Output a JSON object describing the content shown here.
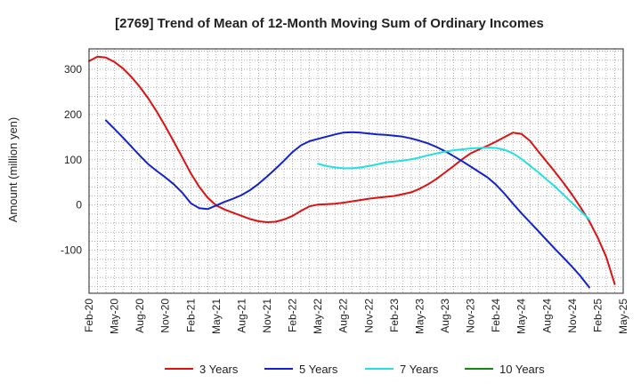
{
  "chart_data": {
    "type": "line",
    "title": "[2769]  Trend of Mean of 12-Month Moving Sum of Ordinary Incomes",
    "xlabel": "",
    "ylabel": "Amount (million yen)",
    "ylim": [
      -195,
      345
    ],
    "yticks": [
      300,
      200,
      100,
      0,
      -100
    ],
    "ytick_labels": [
      "300",
      "200",
      "100",
      "0",
      "-100"
    ],
    "xlim": [
      0,
      63
    ],
    "x_tick_labels": [
      "Feb-20",
      "May-20",
      "Aug-20",
      "Nov-20",
      "Feb-21",
      "May-21",
      "Aug-21",
      "Nov-21",
      "Feb-22",
      "May-22",
      "Aug-22",
      "Nov-22",
      "Feb-23",
      "May-23",
      "Aug-23",
      "Nov-23",
      "Feb-24",
      "May-24",
      "Aug-24",
      "Nov-24",
      "Feb-25",
      "May-25"
    ],
    "grid": true,
    "legend_position": "bottom",
    "series": [
      {
        "name": "3 Years",
        "color": "#dd1111",
        "start_index": 0,
        "values": [
          318,
          328,
          326,
          316,
          302,
          283,
          261,
          235,
          206,
          174,
          140,
          105,
          70,
          40,
          16,
          -1,
          -10,
          -17,
          -24,
          -31,
          -36,
          -38,
          -37,
          -32,
          -24,
          -13,
          -3,
          1,
          2,
          3,
          5,
          8,
          11,
          14,
          16,
          18,
          20,
          24,
          28,
          36,
          46,
          58,
          72,
          86,
          101,
          114,
          123,
          131,
          140,
          150,
          160,
          157,
          142,
          118,
          95,
          72,
          48,
          22,
          -6,
          -36,
          -72,
          -115,
          -175
        ]
      },
      {
        "name": "5 Years",
        "color": "#1122cc",
        "start_index": 2,
        "values": [
          187,
          168,
          149,
          129,
          109,
          90,
          75,
          61,
          46,
          27,
          4,
          -7,
          -9,
          -1,
          7,
          14,
          22,
          33,
          47,
          63,
          80,
          98,
          117,
          132,
          141,
          146,
          151,
          156,
          160,
          161,
          160,
          158,
          156,
          155,
          153,
          151,
          147,
          142,
          136,
          128,
          119,
          108,
          97,
          85,
          73,
          61,
          45,
          25,
          3,
          -18,
          -38,
          -58,
          -78,
          -98,
          -117,
          -137,
          -158,
          -182
        ]
      },
      {
        "name": "7 Years",
        "color": "#22e0e0",
        "start_index": 27,
        "values": [
          91,
          86,
          83,
          81,
          81,
          83,
          86,
          90,
          94,
          96,
          98,
          101,
          105,
          110,
          114,
          118,
          121,
          123,
          125,
          126,
          127,
          126,
          122,
          114,
          102,
          87,
          72,
          56,
          40,
          22,
          4,
          -14,
          -32
        ]
      },
      {
        "name": "10 Years",
        "color": "#118811",
        "start_index": 0,
        "values": []
      }
    ]
  }
}
